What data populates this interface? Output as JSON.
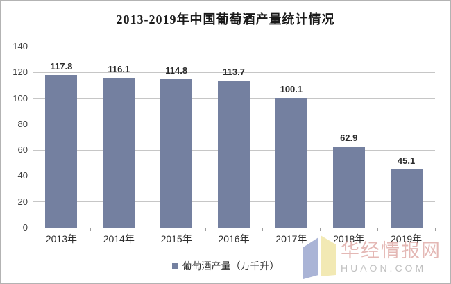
{
  "chart_data": {
    "type": "bar",
    "title": "2013-2019年中国葡萄酒产量统计情况",
    "categories": [
      "2013年",
      "2014年",
      "2015年",
      "2016年",
      "2017年",
      "2018年",
      "2019年"
    ],
    "values": [
      117.8,
      116.1,
      114.8,
      113.7,
      100.1,
      62.9,
      45.1
    ],
    "series_name": "葡萄酒产量（万千升）",
    "xlabel": "",
    "ylabel": "",
    "ylim": [
      0,
      140
    ],
    "ytick_step": 20,
    "y_ticks": [
      0,
      20,
      40,
      60,
      80,
      100,
      120,
      140
    ],
    "grid": true,
    "value_labels": true,
    "legend_position": "bottom"
  },
  "legend": {
    "label": "葡萄酒产量（万千升）"
  },
  "watermark": {
    "site_name": "华经情报网",
    "site_url": "HUAON.COM"
  },
  "colors": {
    "bar": "#7480A0",
    "grid": "#c6c6c6",
    "axis": "#9e9e9e",
    "title": "#1a1a1a",
    "watermark_name": "rgba(205,125,120,0.55)",
    "watermark_url": "rgba(140,140,140,0.55)",
    "logo_blue": "#aab4d6",
    "logo_yellow": "#f2e9b4"
  }
}
